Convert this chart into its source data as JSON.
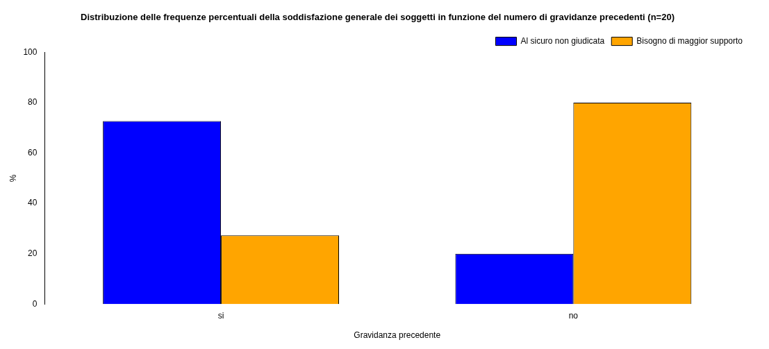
{
  "chart_data": {
    "type": "bar",
    "title": "Distribuzione delle frequenze percentuali della soddisfazione generale dei soggetti in funzione del numero di gravidanze precedenti (n=20)",
    "xlabel": "Gravidanza precedente",
    "ylabel": "%",
    "categories": [
      "si",
      "no"
    ],
    "series": [
      {
        "name": "Al sicuro non giudicata",
        "color": "#0000ff",
        "values": [
          72.7,
          20
        ]
      },
      {
        "name": "Bisogno di maggior supporto",
        "color": "#ffa500",
        "values": [
          27.3,
          80
        ]
      }
    ],
    "ylim": [
      0,
      100
    ],
    "yticks": [
      0,
      20,
      40,
      60,
      80,
      100
    ],
    "grid": false,
    "legend": "top right"
  }
}
